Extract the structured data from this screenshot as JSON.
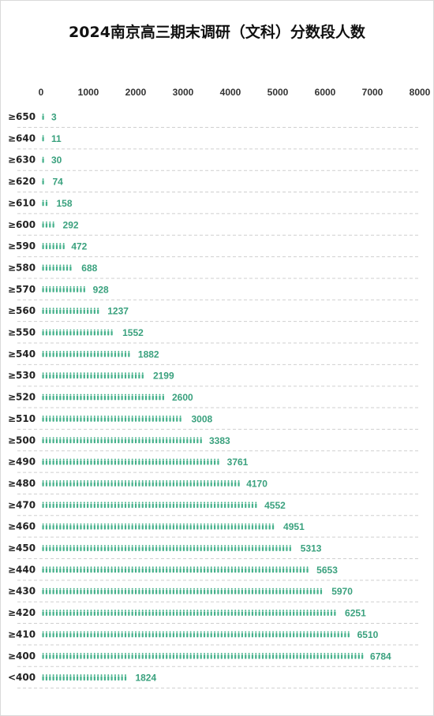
{
  "chart_data": {
    "type": "bar",
    "title": "2024南京高三期末调研（文科）分数段人数",
    "x_ticks": [
      0,
      1000,
      2000,
      3000,
      4000,
      5000,
      6000,
      7000,
      8000
    ],
    "xlim": [
      0,
      8000
    ],
    "categories": [
      "≥650",
      "≥640",
      "≥630",
      "≥620",
      "≥610",
      "≥600",
      "≥590",
      "≥580",
      "≥570",
      "≥560",
      "≥550",
      "≥540",
      "≥530",
      "≥520",
      "≥510",
      "≥500",
      "≥490",
      "≥480",
      "≥470",
      "≥460",
      "≥450",
      "≥440",
      "≥430",
      "≥420",
      "≥410",
      "≥400",
      "<400"
    ],
    "values": [
      3,
      11,
      30,
      74,
      158,
      292,
      472,
      688,
      928,
      1237,
      1552,
      1882,
      2199,
      2600,
      3008,
      3383,
      3761,
      4170,
      4552,
      4951,
      5313,
      5653,
      5970,
      6251,
      6510,
      6784,
      1824
    ],
    "orientation": "horizontal",
    "axis_position": "top",
    "mark": "person-pictogram",
    "colors": {
      "bar": "#45b18b",
      "label": "#3aa17e"
    }
  }
}
